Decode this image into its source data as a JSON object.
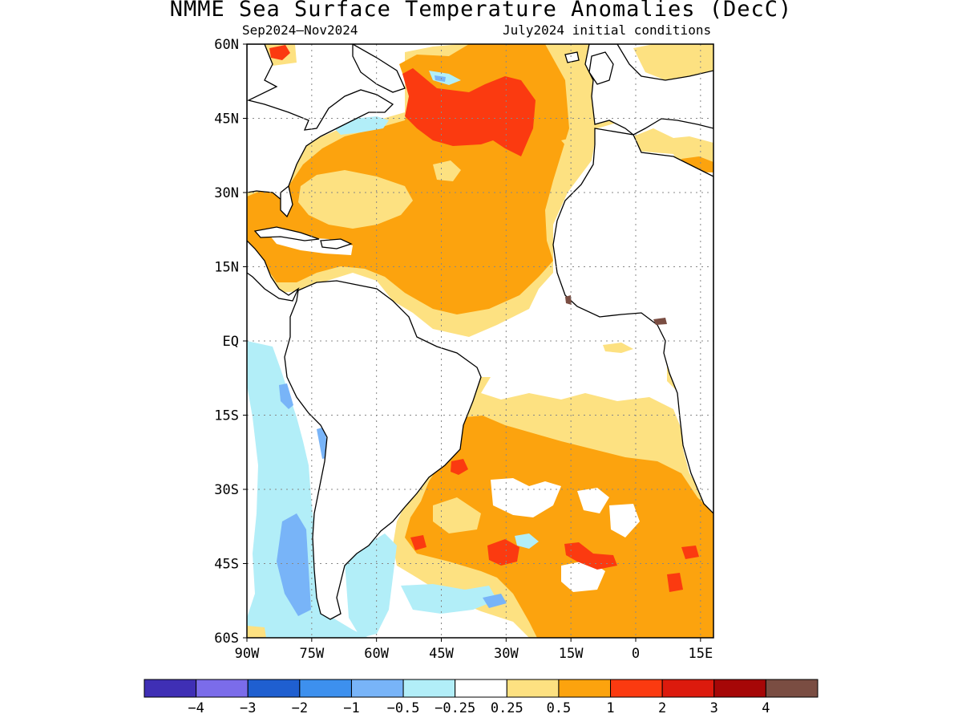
{
  "title": "NMME Sea Surface Temperature Anomalies (DecC)",
  "subtitle_left": "Sep2024–Nov2024",
  "subtitle_right": "July2024 initial conditions",
  "map": {
    "lon_range": [
      -90,
      18
    ],
    "lat_range": [
      -60,
      60
    ],
    "lat_ticks": [
      {
        "value": 60,
        "label": "60N"
      },
      {
        "value": 45,
        "label": "45N"
      },
      {
        "value": 30,
        "label": "30N"
      },
      {
        "value": 15,
        "label": "15N"
      },
      {
        "value": 0,
        "label": "EQ"
      },
      {
        "value": -15,
        "label": "15S"
      },
      {
        "value": -30,
        "label": "30S"
      },
      {
        "value": -45,
        "label": "45S"
      },
      {
        "value": -60,
        "label": "60S"
      }
    ],
    "lon_ticks": [
      {
        "value": -90,
        "label": "90W"
      },
      {
        "value": -75,
        "label": "75W"
      },
      {
        "value": -60,
        "label": "60W"
      },
      {
        "value": -45,
        "label": "45W"
      },
      {
        "value": -30,
        "label": "30W"
      },
      {
        "value": -15,
        "label": "15W"
      },
      {
        "value": 0,
        "label": "0"
      },
      {
        "value": 15,
        "label": "15E"
      }
    ]
  },
  "colorbar": {
    "colors": [
      "#3f2fb5",
      "#7b6cea",
      "#1f5fd0",
      "#3d90ee",
      "#78b4f8",
      "#b2eef8",
      "#ffffff",
      "#fde181",
      "#fca30e",
      "#fb3a10",
      "#dc1a0d",
      "#a60707",
      "#7a4d42"
    ],
    "labels": [
      "−4",
      "−3",
      "−2",
      "−1",
      "−0.5",
      "−0.25",
      "0.25",
      "0.5",
      "1",
      "2",
      "3",
      "4"
    ]
  }
}
